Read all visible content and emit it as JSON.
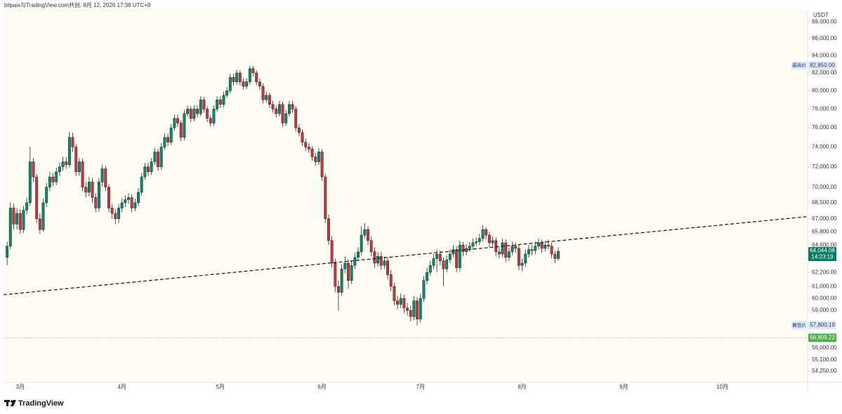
{
  "chart_data": {
    "type": "candlestick",
    "header": "bitpaix与TradingView.com共创, 8月 12, 2026 17:36 UTC+8",
    "currency": "USDT",
    "logo": "TradingView",
    "log_scale": true,
    "up_color": "#0b8a6c",
    "down_color": "#c8373d",
    "xlim": [
      -5.1,
      240
    ],
    "xticks": [
      {
        "value": 0,
        "label": "3月"
      },
      {
        "value": 31,
        "label": "4月"
      },
      {
        "value": 61,
        "label": "5月"
      },
      {
        "value": 92,
        "label": "6月"
      },
      {
        "value": 122,
        "label": "7月"
      },
      {
        "value": 153,
        "label": "8月"
      },
      {
        "value": 184,
        "label": "9月"
      },
      {
        "value": 214,
        "label": "10月"
      }
    ],
    "ylim": [
      53400,
      89500
    ],
    "yticks": [
      {
        "value": 88000,
        "label": "88,000.00"
      },
      {
        "value": 86000,
        "label": "86,000.00"
      },
      {
        "value": 84000,
        "label": "84,000.00"
      },
      {
        "value": 82000,
        "label": "82,000.00"
      },
      {
        "value": 80000,
        "label": "80,000.00"
      },
      {
        "value": 78000,
        "label": "78,000.00"
      },
      {
        "value": 76000,
        "label": "76,000.00"
      },
      {
        "value": 74000,
        "label": "74,000.00"
      },
      {
        "value": 72000,
        "label": "72,000.00"
      },
      {
        "value": 70000,
        "label": "70,000.00"
      },
      {
        "value": 68500,
        "label": "68,500.00"
      },
      {
        "value": 67000,
        "label": "67,000.00"
      },
      {
        "value": 65800,
        "label": "65,800.00"
      },
      {
        "value": 64600,
        "label": "64,600.00"
      },
      {
        "value": 62200,
        "label": "62,200.00"
      },
      {
        "value": 61000,
        "label": "61,000.00"
      },
      {
        "value": 60000,
        "label": "60,000.00"
      },
      {
        "value": 59000,
        "label": "59,000.00"
      },
      {
        "value": 56000,
        "label": "56,000.00"
      },
      {
        "value": 55100,
        "label": "55,100.00"
      },
      {
        "value": 54250,
        "label": "54,250.00"
      }
    ],
    "x": [
      -4,
      -3,
      -2,
      -1,
      0,
      1,
      2,
      3,
      4,
      5,
      6,
      7,
      8,
      9,
      10,
      11,
      12,
      13,
      14,
      15,
      16,
      17,
      18,
      19,
      20,
      21,
      22,
      23,
      24,
      25,
      26,
      27,
      28,
      29,
      30,
      31,
      32,
      33,
      34,
      35,
      36,
      37,
      38,
      39,
      40,
      41,
      42,
      43,
      44,
      45,
      46,
      47,
      48,
      49,
      50,
      51,
      52,
      53,
      54,
      55,
      56,
      57,
      58,
      59,
      60,
      61,
      62,
      63,
      64,
      65,
      66,
      67,
      68,
      69,
      70,
      71,
      72,
      73,
      74,
      75,
      76,
      77,
      78,
      79,
      80,
      81,
      82,
      83,
      84,
      85,
      86,
      87,
      88,
      89,
      90,
      91,
      92,
      93,
      94,
      95,
      96,
      97,
      98,
      99,
      100,
      101,
      102,
      103,
      104,
      105,
      106,
      107,
      108,
      109,
      110,
      111,
      112,
      113,
      114,
      115,
      116,
      117,
      118,
      119,
      120,
      121,
      122,
      123,
      124,
      125,
      126,
      127,
      128,
      129,
      130,
      131,
      132,
      133,
      134,
      135,
      136,
      137,
      138,
      139,
      140,
      141,
      142,
      143,
      144,
      145,
      146,
      147,
      148,
      149,
      150,
      151,
      152,
      153,
      154,
      155,
      156,
      157,
      158,
      159,
      160,
      161,
      162,
      163,
      164
    ],
    "open": [
      63500,
      64500,
      68000,
      66500,
      67500,
      66000,
      67800,
      68500,
      72500,
      71000,
      67000,
      66000,
      68500,
      70000,
      71000,
      70500,
      71500,
      72000,
      72500,
      72200,
      75000,
      74000,
      71500,
      72500,
      70000,
      69500,
      70500,
      69000,
      68000,
      70500,
      71800,
      70000,
      68000,
      67500,
      67000,
      68000,
      68500,
      68800,
      69000,
      68000,
      68500,
      69500,
      71000,
      72000,
      71500,
      72500,
      73500,
      72000,
      74000,
      75000,
      74500,
      76000,
      77000,
      76500,
      75000,
      77500,
      78000,
      77000,
      78000,
      77500,
      79000,
      78000,
      77000,
      76500,
      78000,
      79000,
      78500,
      79500,
      80000,
      81500,
      81000,
      82000,
      81000,
      80500,
      81000,
      82500,
      82000,
      81000,
      80500,
      79000,
      79500,
      78500,
      78000,
      77500,
      78500,
      76500,
      77500,
      78500,
      78000,
      76000,
      75500,
      74500,
      74000,
      73800,
      73000,
      72500,
      73500,
      71000,
      67000,
      65000,
      63000,
      61000,
      60500,
      62500,
      63000,
      61500,
      62800,
      63500,
      64000,
      65500,
      66000,
      65000,
      64000,
      63000,
      63600,
      62800,
      63200,
      62000,
      61000,
      59800,
      59500,
      60000,
      59200,
      59000,
      58500,
      59800,
      58300,
      60000,
      61500,
      62200,
      62800,
      63400,
      63800,
      63200,
      62500,
      63300,
      63800,
      64200,
      62600,
      64600,
      64000,
      64300,
      64500,
      64800,
      64900,
      65200,
      66000,
      65500,
      64800,
      65000,
      64000,
      63800,
      64800,
      63500,
      64000,
      64500,
      64300,
      62800,
      63000,
      63800,
      64200,
      64100,
      64500,
      64800,
      64300,
      64600,
      64500,
      63800,
      63400
    ],
    "high": [
      64900,
      68500,
      68400,
      68000,
      67900,
      68200,
      69000,
      74000,
      72900,
      71300,
      67500,
      68900,
      70400,
      71500,
      71400,
      71900,
      72400,
      73000,
      73000,
      75600,
      75500,
      74300,
      72900,
      72800,
      70500,
      71000,
      70900,
      69400,
      70900,
      72200,
      72100,
      70300,
      68400,
      67900,
      68400,
      68900,
      69200,
      69400,
      69300,
      68900,
      69900,
      71400,
      72400,
      72400,
      72900,
      73900,
      73800,
      74400,
      75400,
      75400,
      76400,
      77400,
      77400,
      76800,
      77900,
      78400,
      78300,
      78400,
      78400,
      79400,
      79300,
      78300,
      77300,
      78400,
      79400,
      79400,
      79900,
      80400,
      81900,
      81900,
      82400,
      82300,
      81400,
      81400,
      82850,
      82800,
      82300,
      81400,
      80800,
      79900,
      79800,
      78900,
      78400,
      78900,
      78800,
      77900,
      78900,
      78900,
      78300,
      76400,
      75800,
      74900,
      74400,
      74100,
      73400,
      73900,
      73800,
      71300,
      67400,
      65400,
      63400,
      61500,
      62900,
      63600,
      63300,
      63200,
      63900,
      64400,
      66300,
      66600,
      66300,
      65400,
      64400,
      64000,
      64000,
      63600,
      63500,
      62400,
      61300,
      60200,
      60400,
      60300,
      59600,
      59400,
      60200,
      60100,
      60400,
      61900,
      62600,
      63200,
      63800,
      64200,
      64100,
      63500,
      63700,
      64200,
      64600,
      64500,
      65000,
      64900,
      64700,
      64900,
      65200,
      65300,
      65600,
      66400,
      66200,
      65800,
      65400,
      65300,
      64400,
      65200,
      65100,
      64400,
      64900,
      64800,
      64600,
      63400,
      64200,
      64600,
      64600,
      64900,
      65200,
      65100,
      65000,
      65100,
      64800,
      64100,
      64400
    ],
    "low": [
      62800,
      64200,
      66000,
      66000,
      65600,
      65700,
      67400,
      68200,
      70500,
      66600,
      65600,
      65800,
      68100,
      69600,
      70100,
      70200,
      71100,
      71600,
      71800,
      71900,
      73500,
      71100,
      71100,
      69600,
      69000,
      69100,
      68500,
      67600,
      67700,
      70100,
      69600,
      67600,
      67000,
      66500,
      66600,
      67600,
      68100,
      68400,
      67600,
      67700,
      68200,
      69200,
      70700,
      71100,
      71200,
      72200,
      71600,
      71700,
      73700,
      74100,
      74200,
      75700,
      76100,
      74600,
      74700,
      77200,
      76600,
      76700,
      77100,
      77200,
      77600,
      76600,
      76100,
      76200,
      77700,
      78100,
      78200,
      79200,
      79700,
      80600,
      80700,
      80600,
      80100,
      80200,
      80700,
      81600,
      80600,
      80100,
      78600,
      78700,
      78100,
      77600,
      77100,
      77200,
      76100,
      76200,
      77200,
      77600,
      75600,
      75100,
      74100,
      73600,
      73400,
      72600,
      72100,
      72200,
      70600,
      66600,
      64600,
      62600,
      60500,
      59000,
      60200,
      62100,
      60800,
      61200,
      62500,
      63200,
      63700,
      65200,
      64600,
      63600,
      62600,
      62700,
      62400,
      62500,
      61600,
      60600,
      59400,
      59100,
      59200,
      58800,
      58600,
      58100,
      58200,
      57800.19,
      58000,
      59700,
      61200,
      61900,
      62500,
      62200,
      62800,
      61000,
      62200,
      63000,
      63500,
      62200,
      62300,
      63600,
      63700,
      64000,
      64200,
      64500,
      64600,
      64900,
      65100,
      64400,
      64500,
      63600,
      63400,
      63500,
      63100,
      63200,
      63700,
      63900,
      62400,
      62300,
      62700,
      63500,
      63700,
      63800,
      64200,
      63900,
      64000,
      64200,
      63400,
      63000,
      63200
    ],
    "close": [
      64500,
      68000,
      66500,
      67500,
      66000,
      67800,
      68500,
      72500,
      71000,
      67000,
      66000,
      68500,
      70000,
      71000,
      70500,
      71500,
      72000,
      72500,
      72200,
      75000,
      74000,
      71500,
      72500,
      70000,
      69500,
      70500,
      69000,
      68000,
      70500,
      71800,
      70000,
      68000,
      67500,
      67000,
      68000,
      68500,
      68800,
      69000,
      68000,
      68500,
      69500,
      71000,
      72000,
      71500,
      72500,
      73500,
      72000,
      74000,
      75000,
      74500,
      76000,
      77000,
      76500,
      75000,
      77500,
      78000,
      77000,
      78000,
      77500,
      79000,
      78000,
      77000,
      76500,
      78000,
      79000,
      78500,
      79500,
      80000,
      81500,
      81000,
      82000,
      81000,
      80500,
      81000,
      82500,
      82000,
      81000,
      80500,
      79000,
      79500,
      78500,
      78000,
      77500,
      78500,
      76500,
      77500,
      78500,
      78000,
      76000,
      75500,
      74500,
      74000,
      73800,
      73000,
      72500,
      73500,
      71000,
      67000,
      65000,
      63000,
      61000,
      60500,
      62500,
      63000,
      61500,
      62800,
      63500,
      64000,
      65500,
      66000,
      65000,
      64000,
      63000,
      63600,
      62800,
      63200,
      62000,
      61000,
      59800,
      59500,
      60000,
      59200,
      59000,
      58500,
      59800,
      58300,
      60000,
      61500,
      62200,
      62800,
      63400,
      63800,
      63200,
      62500,
      63300,
      63800,
      64200,
      62600,
      64600,
      64000,
      64300,
      64500,
      64800,
      64900,
      65200,
      66000,
      65500,
      64800,
      65000,
      64000,
      63800,
      64800,
      63500,
      64000,
      64500,
      64300,
      62800,
      63000,
      63800,
      64200,
      64100,
      64500,
      64800,
      64300,
      64600,
      64500,
      63800,
      63400,
      64044.08
    ],
    "trendline": {
      "start": 60300,
      "end": 67200
    },
    "price_labels": {
      "high": {
        "label": "最高价",
        "value": 82850,
        "value_label": "82,850.00"
      },
      "low": {
        "label": "最低价",
        "value": 57800.19,
        "value_label": "57,800.19"
      },
      "last": {
        "value": 64044.08,
        "value_label": "64,044.08",
        "countdown": "14:23:19"
      },
      "marker": {
        "value": 56809.22,
        "value_label": "56,809.22"
      }
    }
  }
}
